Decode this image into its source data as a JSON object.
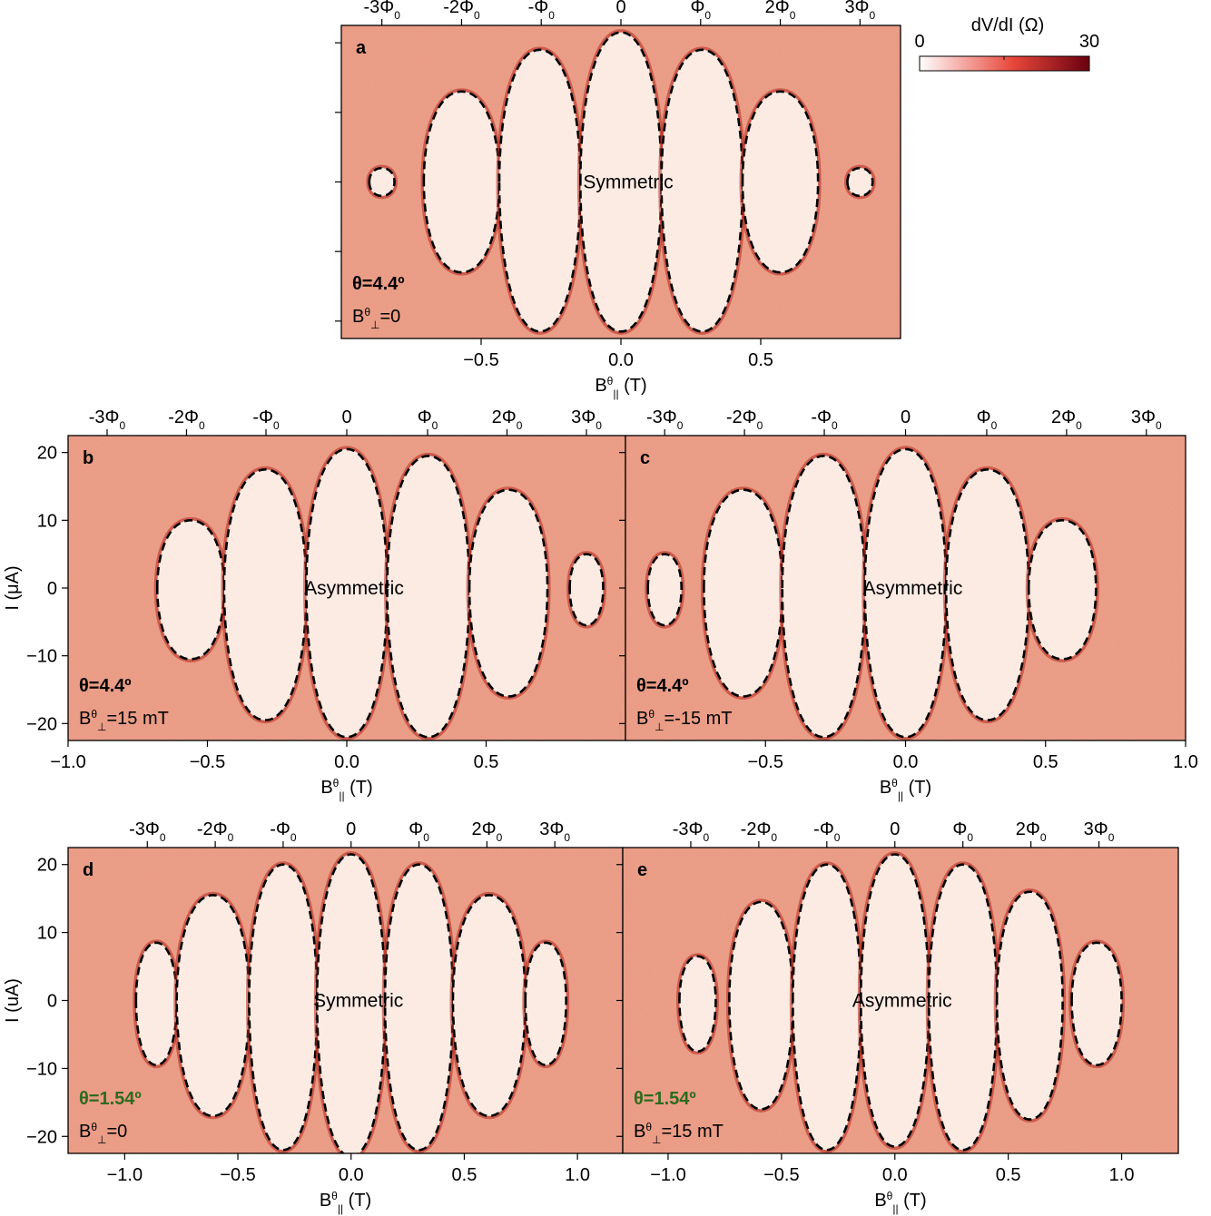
{
  "colorbar": {
    "label": "dV/dI (Ω)",
    "min_label": "0",
    "max_label": "30",
    "range": [
      0,
      30
    ],
    "colors": [
      "#ffffff",
      "#e8473a",
      "#6b0010"
    ]
  },
  "colors": {
    "background": "#e9967e",
    "lobe_fill": "#fcebe3",
    "edge": "#b5271c",
    "contour": "#000000",
    "theta_small": "#2d6a1e"
  },
  "chart_data": [
    {
      "type": "heatmap",
      "panel": "a",
      "label_main": "θ=4.4º",
      "label_sub": "B",
      "label_sub_sup": "θ",
      "label_sub_sub": "⊥",
      "label_sub_val": "=0",
      "title": "Symmetric",
      "xlabel": "B",
      "xlabel_sup": "θ",
      "xlabel_sub": "||",
      "xlabel_unit": " (T)",
      "ylabel": "",
      "xlim": [
        -1.0,
        1.0
      ],
      "ylim": [
        -22.5,
        22.5
      ],
      "xticks": [
        -0.5,
        0.0,
        0.5
      ],
      "xtick_labels": [
        "−0.5",
        "0.0",
        "0.5"
      ],
      "yticks": [
        -20,
        -10,
        0,
        10,
        20
      ],
      "ytick_labels": [],
      "flux_ticks": [
        {
          "x": -0.855,
          "base": "-3Φ",
          "sub": "0"
        },
        {
          "x": -0.57,
          "base": "-2Φ",
          "sub": "0"
        },
        {
          "x": -0.285,
          "base": "-Φ",
          "sub": "0"
        },
        {
          "x": 0.0,
          "base": "0",
          "sub": ""
        },
        {
          "x": 0.285,
          "base": "Φ",
          "sub": "0"
        },
        {
          "x": 0.57,
          "base": "2Φ",
          "sub": "0"
        },
        {
          "x": 0.855,
          "base": "3Φ",
          "sub": "0"
        }
      ],
      "lobes": [
        {
          "x0": -0.9,
          "x1": -0.81,
          "ic_pos": 2.0,
          "ic_neg": -2.0
        },
        {
          "x0": -0.705,
          "x1": -0.435,
          "ic_pos": 13.0,
          "ic_neg": -13.0
        },
        {
          "x0": -0.435,
          "x1": -0.145,
          "ic_pos": 19.0,
          "ic_neg": -21.5
        },
        {
          "x0": -0.145,
          "x1": 0.145,
          "ic_pos": 21.5,
          "ic_neg": -21.5
        },
        {
          "x0": 0.145,
          "x1": 0.435,
          "ic_pos": 19.0,
          "ic_neg": -21.5
        },
        {
          "x0": 0.435,
          "x1": 0.705,
          "ic_pos": 13.0,
          "ic_neg": -13.0
        },
        {
          "x0": 0.81,
          "x1": 0.9,
          "ic_pos": 2.0,
          "ic_neg": -2.0
        }
      ]
    },
    {
      "type": "heatmap",
      "panel": "b",
      "label_main": "θ=4.4º",
      "label_sub": "B",
      "label_sub_sup": "θ",
      "label_sub_sub": "⊥",
      "label_sub_val": "=15 mT",
      "title": "Asymmetric",
      "xlabel": "B",
      "xlabel_sup": "θ",
      "xlabel_sub": "||",
      "xlabel_unit": " (T)",
      "ylabel": "I (μA)",
      "xlim": [
        -1.0,
        1.0
      ],
      "ylim": [
        -22.5,
        22.5
      ],
      "xticks": [
        -1.0,
        -0.5,
        0.0,
        0.5
      ],
      "xtick_labels": [
        "−1.0",
        "−0.5",
        "0.0",
        "0.5"
      ],
      "yticks": [
        -20,
        -10,
        0,
        10,
        20
      ],
      "ytick_labels": [
        "−20",
        "−10",
        "0",
        "10",
        "20"
      ],
      "flux_ticks": [
        {
          "x": -0.86,
          "base": "-3Φ",
          "sub": "0"
        },
        {
          "x": -0.575,
          "base": "-2Φ",
          "sub": "0"
        },
        {
          "x": -0.29,
          "base": "-Φ",
          "sub": "0"
        },
        {
          "x": 0.0,
          "base": "0",
          "sub": ""
        },
        {
          "x": 0.29,
          "base": "Φ",
          "sub": "0"
        },
        {
          "x": 0.575,
          "base": "2Φ",
          "sub": "0"
        },
        {
          "x": 0.86,
          "base": "3Φ",
          "sub": "0"
        }
      ],
      "lobes": [
        {
          "x0": -0.68,
          "x1": -0.44,
          "ic_pos": 10.0,
          "ic_neg": -10.5
        },
        {
          "x0": -0.44,
          "x1": -0.145,
          "ic_pos": 17.5,
          "ic_neg": -19.5
        },
        {
          "x0": -0.145,
          "x1": 0.145,
          "ic_pos": 20.5,
          "ic_neg": -22.0
        },
        {
          "x0": 0.145,
          "x1": 0.44,
          "ic_pos": 19.5,
          "ic_neg": -22.0
        },
        {
          "x0": 0.44,
          "x1": 0.72,
          "ic_pos": 14.5,
          "ic_neg": -16.0
        },
        {
          "x0": 0.8,
          "x1": 0.92,
          "ic_pos": 5.0,
          "ic_neg": -5.5
        }
      ]
    },
    {
      "type": "heatmap",
      "panel": "c",
      "label_main": "θ=4.4º",
      "label_sub": "B",
      "label_sub_sup": "θ",
      "label_sub_sub": "⊥",
      "label_sub_val": "=-15 mT",
      "title": "Asymmetric",
      "xlabel": "B",
      "xlabel_sup": "θ",
      "xlabel_sub": "||",
      "xlabel_unit": " (T)",
      "ylabel": "",
      "xlim": [
        -1.0,
        1.0
      ],
      "ylim": [
        -22.5,
        22.5
      ],
      "xticks": [
        -0.5,
        0.0,
        0.5,
        1.0
      ],
      "xtick_labels": [
        "−0.5",
        "0.0",
        "0.5",
        "1.0"
      ],
      "yticks": [
        -20,
        -10,
        0,
        10,
        20
      ],
      "ytick_labels": [],
      "flux_ticks": [
        {
          "x": -0.86,
          "base": "-3Φ",
          "sub": "0"
        },
        {
          "x": -0.575,
          "base": "-2Φ",
          "sub": "0"
        },
        {
          "x": -0.29,
          "base": "-Φ",
          "sub": "0"
        },
        {
          "x": 0.0,
          "base": "0",
          "sub": ""
        },
        {
          "x": 0.29,
          "base": "Φ",
          "sub": "0"
        },
        {
          "x": 0.575,
          "base": "2Φ",
          "sub": "0"
        },
        {
          "x": 0.86,
          "base": "3Φ",
          "sub": "0"
        }
      ],
      "lobes": [
        {
          "x0": -0.92,
          "x1": -0.8,
          "ic_pos": 5.0,
          "ic_neg": -5.5
        },
        {
          "x0": -0.72,
          "x1": -0.44,
          "ic_pos": 14.5,
          "ic_neg": -16.0
        },
        {
          "x0": -0.44,
          "x1": -0.145,
          "ic_pos": 19.5,
          "ic_neg": -22.0
        },
        {
          "x0": -0.145,
          "x1": 0.145,
          "ic_pos": 20.5,
          "ic_neg": -22.0
        },
        {
          "x0": 0.145,
          "x1": 0.44,
          "ic_pos": 17.5,
          "ic_neg": -19.5
        },
        {
          "x0": 0.44,
          "x1": 0.68,
          "ic_pos": 10.0,
          "ic_neg": -10.5
        }
      ]
    },
    {
      "type": "heatmap",
      "panel": "d",
      "label_main": "θ=1.54º",
      "label_sub": "B",
      "label_sub_sup": "θ",
      "label_sub_sub": "⊥",
      "label_sub_val": "=0",
      "title": "Symmetric",
      "xlabel": "B",
      "xlabel_sup": "θ",
      "xlabel_sub": "||",
      "xlabel_unit": " (T)",
      "ylabel": "I (uA)",
      "xlim": [
        -1.25,
        1.2
      ],
      "ylim": [
        -22.5,
        22.5
      ],
      "xticks": [
        -1.0,
        -0.5,
        0.0,
        0.5,
        1.0
      ],
      "xtick_labels": [
        "−1.0",
        "−0.5",
        "0.0",
        "0.5",
        "1.0"
      ],
      "yticks": [
        -20,
        -10,
        0,
        10,
        20
      ],
      "ytick_labels": [
        "−20",
        "−10",
        "0",
        "10",
        "20"
      ],
      "flux_ticks": [
        {
          "x": -0.9,
          "base": "-3Φ",
          "sub": "0"
        },
        {
          "x": -0.6,
          "base": "-2Φ",
          "sub": "0"
        },
        {
          "x": -0.3,
          "base": "-Φ",
          "sub": "0"
        },
        {
          "x": 0.0,
          "base": "0",
          "sub": ""
        },
        {
          "x": 0.3,
          "base": "Φ",
          "sub": "0"
        },
        {
          "x": 0.6,
          "base": "2Φ",
          "sub": "0"
        },
        {
          "x": 0.9,
          "base": "3Φ",
          "sub": "0"
        }
      ],
      "lobes": [
        {
          "x0": -0.95,
          "x1": -0.77,
          "ic_pos": 8.5,
          "ic_neg": -9.5
        },
        {
          "x0": -0.77,
          "x1": -0.45,
          "ic_pos": 15.5,
          "ic_neg": -17.0
        },
        {
          "x0": -0.45,
          "x1": -0.15,
          "ic_pos": 20.0,
          "ic_neg": -22.0
        },
        {
          "x0": -0.15,
          "x1": 0.15,
          "ic_pos": 21.5,
          "ic_neg": -23.0
        },
        {
          "x0": 0.15,
          "x1": 0.45,
          "ic_pos": 20.0,
          "ic_neg": -22.0
        },
        {
          "x0": 0.45,
          "x1": 0.77,
          "ic_pos": 15.5,
          "ic_neg": -17.0
        },
        {
          "x0": 0.77,
          "x1": 0.95,
          "ic_pos": 8.5,
          "ic_neg": -9.5
        }
      ]
    },
    {
      "type": "heatmap",
      "panel": "e",
      "label_main": "θ=1.54º",
      "label_sub": "B",
      "label_sub_sup": "θ",
      "label_sub_sub": "⊥",
      "label_sub_val": "=15 mT",
      "title": "Asymmetric",
      "xlabel": "B",
      "xlabel_sup": "θ",
      "xlabel_sub": "||",
      "xlabel_unit": " (T)",
      "ylabel": "",
      "xlim": [
        -1.2,
        1.25
      ],
      "ylim": [
        -22.5,
        22.5
      ],
      "xticks": [
        -1.0,
        -0.5,
        0.0,
        0.5,
        1.0
      ],
      "xtick_labels": [
        "−1.0",
        "−0.5",
        "0.0",
        "0.5",
        "1.0"
      ],
      "yticks": [
        -20,
        -10,
        0,
        10,
        20
      ],
      "ytick_labels": [],
      "flux_ticks": [
        {
          "x": -0.9,
          "base": "-3Φ",
          "sub": "0"
        },
        {
          "x": -0.6,
          "base": "-2Φ",
          "sub": "0"
        },
        {
          "x": -0.3,
          "base": "-Φ",
          "sub": "0"
        },
        {
          "x": 0.0,
          "base": "0",
          "sub": ""
        },
        {
          "x": 0.3,
          "base": "Φ",
          "sub": "0"
        },
        {
          "x": 0.6,
          "base": "2Φ",
          "sub": "0"
        },
        {
          "x": 0.9,
          "base": "3Φ",
          "sub": "0"
        }
      ],
      "lobes": [
        {
          "x0": -0.95,
          "x1": -0.79,
          "ic_pos": 6.5,
          "ic_neg": -7.5
        },
        {
          "x0": -0.73,
          "x1": -0.45,
          "ic_pos": 14.5,
          "ic_neg": -16.0
        },
        {
          "x0": -0.45,
          "x1": -0.15,
          "ic_pos": 20.0,
          "ic_neg": -22.0
        },
        {
          "x0": -0.15,
          "x1": 0.15,
          "ic_pos": 21.5,
          "ic_neg": -21.5
        },
        {
          "x0": 0.15,
          "x1": 0.45,
          "ic_pos": 20.0,
          "ic_neg": -22.0
        },
        {
          "x0": 0.45,
          "x1": 0.74,
          "ic_pos": 16.0,
          "ic_neg": -17.5
        },
        {
          "x0": 0.78,
          "x1": 1.0,
          "ic_pos": 8.5,
          "ic_neg": -9.5
        }
      ]
    }
  ]
}
